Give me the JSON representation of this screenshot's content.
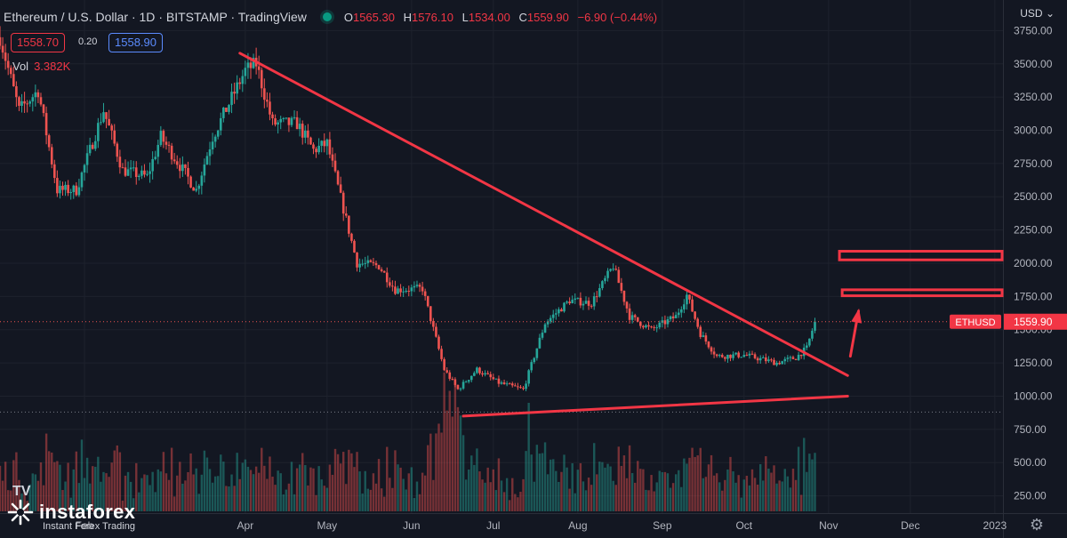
{
  "header": {
    "symbol": "Ethereum / U.S. Dollar",
    "interval": "1D",
    "exchange": "BITSTAMP",
    "source": "TradingView",
    "o_label": "O",
    "o_value": "1565.30",
    "h_label": "H",
    "h_value": "1576.10",
    "l_label": "L",
    "l_value": "1534.00",
    "c_label": "C",
    "c_value": "1559.90",
    "change": "−6.90 (−0.44%)"
  },
  "trade": {
    "sell": "1558.70",
    "spread": "0.20",
    "buy": "1558.90"
  },
  "volume": {
    "label": "Vol",
    "value": "3.382K"
  },
  "currency": "USD",
  "watermark": {
    "name": "instaforex",
    "tagline": "Instant Forex Trading"
  },
  "colors": {
    "up": "#26a69a",
    "down": "#ef5350",
    "drawing": "#f23645",
    "background": "#131722"
  },
  "chart_data": {
    "type": "candlestick",
    "title": "Ethereum / U.S. Dollar",
    "interval": "1D",
    "ylim": [
      120,
      3980
    ],
    "y_ticks": [
      250,
      500,
      750,
      1000,
      1250,
      1500,
      1750,
      2000,
      2250,
      2500,
      2750,
      3000,
      3250,
      3500,
      3750
    ],
    "y_tick_labels": [
      "250.00",
      "500.00",
      "750.00",
      "1000.00",
      "1250.00",
      "1500.00",
      "1750.00",
      "2000.00",
      "2250.00",
      "2500.00",
      "2750.00",
      "3000.00",
      "3250.00",
      "3500.00",
      "3750.00"
    ],
    "x_range": [
      "2022-01-01",
      "2023-01-04"
    ],
    "x_ticks": [
      {
        "label": "Feb",
        "date": "2022-02-01"
      },
      {
        "label": "Apr",
        "date": "2022-04-01"
      },
      {
        "label": "May",
        "date": "2022-05-01"
      },
      {
        "label": "Jun",
        "date": "2022-06-01"
      },
      {
        "label": "Jul",
        "date": "2022-07-01"
      },
      {
        "label": "Aug",
        "date": "2022-08-01"
      },
      {
        "label": "Sep",
        "date": "2022-09-01"
      },
      {
        "label": "Oct",
        "date": "2022-10-01"
      },
      {
        "label": "Nov",
        "date": "2022-11-01"
      },
      {
        "label": "Dec",
        "date": "2022-12-01"
      },
      {
        "label": "2023",
        "date": "2023-01-01"
      }
    ],
    "price_path": [
      {
        "date": "2022-01-01",
        "price": 3700
      },
      {
        "date": "2022-01-08",
        "price": 3150
      },
      {
        "date": "2022-01-15",
        "price": 3300
      },
      {
        "date": "2022-01-22",
        "price": 2550
      },
      {
        "date": "2022-01-29",
        "price": 2550
      },
      {
        "date": "2022-02-08",
        "price": 3150
      },
      {
        "date": "2022-02-15",
        "price": 2700
      },
      {
        "date": "2022-02-24",
        "price": 2650
      },
      {
        "date": "2022-03-01",
        "price": 2950
      },
      {
        "date": "2022-03-14",
        "price": 2550
      },
      {
        "date": "2022-03-20",
        "price": 2950
      },
      {
        "date": "2022-04-01",
        "price": 3450
      },
      {
        "date": "2022-04-05",
        "price": 3500
      },
      {
        "date": "2022-04-11",
        "price": 3050
      },
      {
        "date": "2022-04-20",
        "price": 3050
      },
      {
        "date": "2022-04-26",
        "price": 2850
      },
      {
        "date": "2022-05-01",
        "price": 2900
      },
      {
        "date": "2022-05-12",
        "price": 2000
      },
      {
        "date": "2022-05-20",
        "price": 1980
      },
      {
        "date": "2022-05-26",
        "price": 1800
      },
      {
        "date": "2022-06-05",
        "price": 1810
      },
      {
        "date": "2022-06-13",
        "price": 1200
      },
      {
        "date": "2022-06-18",
        "price": 1050
      },
      {
        "date": "2022-06-25",
        "price": 1200
      },
      {
        "date": "2022-07-03",
        "price": 1100
      },
      {
        "date": "2022-07-12",
        "price": 1050
      },
      {
        "date": "2022-07-20",
        "price": 1550
      },
      {
        "date": "2022-07-29",
        "price": 1720
      },
      {
        "date": "2022-08-06",
        "price": 1700
      },
      {
        "date": "2022-08-14",
        "price": 1980
      },
      {
        "date": "2022-08-20",
        "price": 1600
      },
      {
        "date": "2022-08-28",
        "price": 1500
      },
      {
        "date": "2022-09-06",
        "price": 1600
      },
      {
        "date": "2022-09-10",
        "price": 1760
      },
      {
        "date": "2022-09-15",
        "price": 1470
      },
      {
        "date": "2022-09-21",
        "price": 1300
      },
      {
        "date": "2022-10-01",
        "price": 1310
      },
      {
        "date": "2022-10-13",
        "price": 1250
      },
      {
        "date": "2022-10-20",
        "price": 1290
      },
      {
        "date": "2022-10-24",
        "price": 1360
      },
      {
        "date": "2022-10-27",
        "price": 1560
      }
    ],
    "last_price": {
      "symbol": "ETHUSD",
      "value": 1559.9,
      "label": "1559.90"
    },
    "horizontal_dotted_line": 880,
    "drawings": [
      {
        "kind": "trendline",
        "from": {
          "date": "2022-03-30",
          "price": 3580
        },
        "to": {
          "date": "2022-11-08",
          "price": 1155
        }
      },
      {
        "kind": "trendline",
        "from": {
          "date": "2022-06-20",
          "price": 850
        },
        "to": {
          "date": "2022-11-08",
          "price": 1000
        }
      },
      {
        "kind": "arrow",
        "from": {
          "date": "2022-11-09",
          "price": 1300
        },
        "to": {
          "date": "2022-11-12",
          "price": 1640
        }
      },
      {
        "kind": "zone",
        "date_from": "2022-11-06",
        "date_to": "2023-01-04",
        "price_low": 1755,
        "price_high": 1800
      },
      {
        "kind": "zone",
        "date_from": "2022-11-05",
        "date_to": "2023-01-04",
        "price_low": 2025,
        "price_high": 2090
      }
    ],
    "grid": true,
    "legend": "top-left"
  }
}
